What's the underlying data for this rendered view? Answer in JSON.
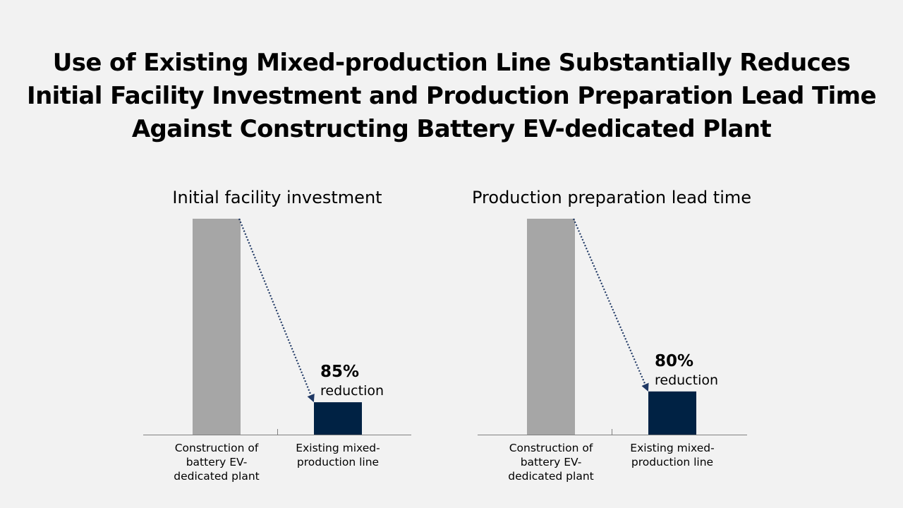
{
  "slide": {
    "title_lines": [
      "Use of Existing Mixed-production Line Substantially Reduces",
      "Initial Facility Investment and Production Preparation Lead Time",
      "Against Constructing Battery EV-dedicated Plant"
    ]
  },
  "colors": {
    "background": "#f2f2f2",
    "baseline_bar": "#a6a6a6",
    "reduced_bar": "#002244",
    "arrow": "#1f3864",
    "axis": "#808080"
  },
  "chart_data": [
    {
      "type": "bar",
      "title": "Initial facility investment",
      "categories": [
        [
          "Construction of",
          "battery EV-",
          "dedicated plant"
        ],
        [
          "Existing mixed-",
          "production line"
        ]
      ],
      "values": [
        100,
        15
      ],
      "ylim": [
        0,
        100
      ],
      "annotation": {
        "value": "85%",
        "label": "reduction"
      },
      "grid": false,
      "axis_labels_visible": false
    },
    {
      "type": "bar",
      "title": "Production preparation lead time",
      "categories": [
        [
          "Construction of",
          "battery EV-",
          "dedicated plant"
        ],
        [
          "Existing mixed-",
          "production line"
        ]
      ],
      "values": [
        100,
        20
      ],
      "ylim": [
        0,
        100
      ],
      "annotation": {
        "value": "80%",
        "label": "reduction"
      },
      "grid": false,
      "axis_labels_visible": false
    }
  ]
}
